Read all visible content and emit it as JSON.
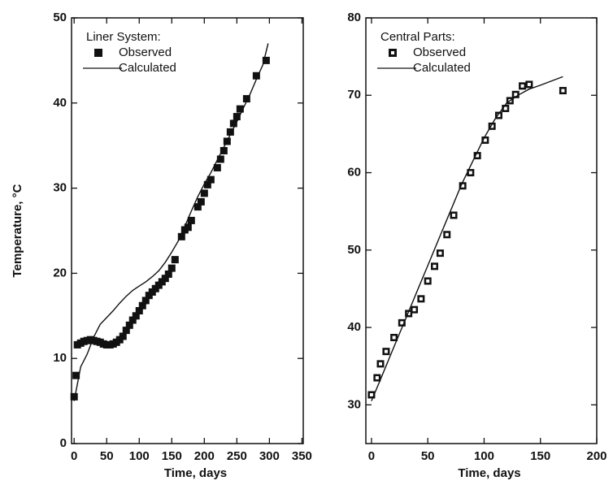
{
  "chart_data": [
    {
      "type": "line",
      "legend_title": "Liner System:",
      "xlabel": "Time, days",
      "ylabel": "Temperature, °C",
      "xlim": [
        -4,
        352
      ],
      "ylim": [
        0,
        50
      ],
      "xticks": [
        0,
        50,
        100,
        150,
        200,
        250,
        300,
        350
      ],
      "yticks": [
        0,
        10,
        20,
        30,
        40,
        50
      ],
      "legend": "upper left",
      "series": [
        {
          "name": "Observed",
          "color": "#111111",
          "marker": "filled",
          "x": [
            0,
            3,
            5,
            10,
            15,
            20,
            25,
            30,
            35,
            40,
            45,
            50,
            55,
            60,
            65,
            70,
            75,
            80,
            85,
            90,
            95,
            100,
            105,
            110,
            115,
            120,
            125,
            130,
            135,
            140,
            145,
            150,
            155,
            165,
            170,
            175,
            180,
            190,
            195,
            200,
            205,
            210,
            220,
            225,
            230,
            235,
            240,
            245,
            250,
            255,
            265,
            280,
            295
          ],
          "values": [
            5.5,
            8,
            11.6,
            11.8,
            12,
            12.1,
            12.2,
            12.1,
            12,
            11.9,
            11.7,
            11.6,
            11.6,
            11.7,
            11.9,
            12.2,
            12.6,
            13.3,
            13.9,
            14.5,
            15,
            15.6,
            16.2,
            16.8,
            17.4,
            17.8,
            18.2,
            18.6,
            19,
            19.4,
            19.9,
            20.6,
            21.6,
            24.3,
            25.1,
            25.4,
            26.2,
            27.8,
            28.4,
            29.4,
            30.4,
            31,
            32.4,
            33.4,
            34.4,
            35.5,
            36.6,
            37.6,
            38.4,
            39.3,
            40.5,
            43.2,
            45
          ]
        },
        {
          "name": "Calculated",
          "color": "#111111",
          "marker": "none",
          "x": [
            0,
            10,
            20,
            30,
            40,
            50,
            60,
            70,
            80,
            90,
            100,
            110,
            120,
            130,
            140,
            150,
            160,
            170,
            180,
            190,
            200,
            210,
            220,
            230,
            240,
            250,
            260,
            270,
            280,
            290,
            298
          ],
          "values": [
            5,
            9,
            10.5,
            12.5,
            14,
            14.8,
            15.6,
            16.5,
            17.3,
            18,
            18.5,
            19,
            19.6,
            20.3,
            21.3,
            22.5,
            23.8,
            25.5,
            27.3,
            29,
            30.5,
            31.8,
            33.3,
            34.8,
            36.3,
            37.8,
            39.4,
            41,
            42.8,
            44.5,
            47
          ]
        }
      ]
    },
    {
      "type": "line",
      "legend_title": "Central Parts:",
      "xlabel": "Time, days",
      "xlim": [
        -5,
        200
      ],
      "ylim": [
        25,
        80
      ],
      "xticks": [
        0,
        50,
        100,
        150,
        200
      ],
      "yticks": [
        30,
        40,
        50,
        60,
        70,
        80
      ],
      "legend": "upper left",
      "series": [
        {
          "name": "Observed",
          "color": "#111111",
          "marker": "open",
          "x": [
            0,
            5,
            8,
            13,
            20,
            27,
            33,
            38,
            44,
            50,
            56,
            61,
            67,
            73,
            81,
            88,
            94,
            101,
            107,
            113,
            119,
            123,
            128,
            134,
            140,
            170
          ],
          "values": [
            31.3,
            33.5,
            35.3,
            36.9,
            38.7,
            40.6,
            41.8,
            42.3,
            43.7,
            46,
            47.9,
            49.6,
            52,
            54.5,
            58.3,
            60,
            62.2,
            64.2,
            66,
            67.4,
            68.3,
            69.3,
            70.1,
            71.2,
            71.4,
            70.6
          ]
        },
        {
          "name": "Calculated",
          "color": "#111111",
          "marker": "none",
          "x": [
            0,
            10,
            20,
            30,
            40,
            50,
            60,
            70,
            80,
            90,
            100,
            110,
            120,
            130,
            140,
            150,
            170
          ],
          "values": [
            30.5,
            34,
            37.5,
            41,
            44.5,
            48,
            51.5,
            55,
            58.5,
            61.5,
            64.5,
            67,
            69,
            70,
            70.8,
            71.3,
            72.4
          ]
        }
      ]
    }
  ]
}
